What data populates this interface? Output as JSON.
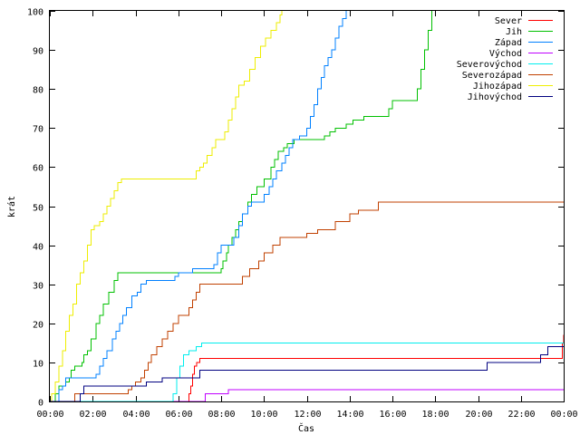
{
  "chart_data": {
    "type": "line",
    "title": "",
    "xlabel": "Čas",
    "ylabel": "krát",
    "xlim": [
      0,
      1440
    ],
    "ylim": [
      0,
      100
    ],
    "grid": false,
    "legend_position": "top-right",
    "x_units": "minutes of day",
    "x_ticks": [
      {
        "value": 0,
        "label": "00:00"
      },
      {
        "value": 120,
        "label": "02:00"
      },
      {
        "value": 240,
        "label": "04:00"
      },
      {
        "value": 360,
        "label": "06:00"
      },
      {
        "value": 480,
        "label": "08:00"
      },
      {
        "value": 600,
        "label": "10:00"
      },
      {
        "value": 720,
        "label": "12:00"
      },
      {
        "value": 840,
        "label": "14:00"
      },
      {
        "value": 960,
        "label": "16:00"
      },
      {
        "value": 1080,
        "label": "18:00"
      },
      {
        "value": 1200,
        "label": "20:00"
      },
      {
        "value": 1320,
        "label": "22:00"
      },
      {
        "value": 1440,
        "label": "00:00"
      }
    ],
    "y_ticks": [
      {
        "value": 0,
        "label": "0"
      },
      {
        "value": 10,
        "label": "10"
      },
      {
        "value": 20,
        "label": "20"
      },
      {
        "value": 30,
        "label": "30"
      },
      {
        "value": 40,
        "label": "40"
      },
      {
        "value": 50,
        "label": "50"
      },
      {
        "value": 60,
        "label": "60"
      },
      {
        "value": 70,
        "label": "70"
      },
      {
        "value": 80,
        "label": "80"
      },
      {
        "value": 90,
        "label": "90"
      },
      {
        "value": 100,
        "label": "100"
      }
    ],
    "series": [
      {
        "name": "Sever",
        "color": "#ff0000",
        "points": [
          [
            0,
            0
          ],
          [
            385,
            0
          ],
          [
            390,
            2
          ],
          [
            395,
            4
          ],
          [
            400,
            7
          ],
          [
            405,
            9
          ],
          [
            412,
            10
          ],
          [
            420,
            11
          ],
          [
            1432,
            11
          ],
          [
            1436,
            15
          ],
          [
            1440,
            17
          ]
        ]
      },
      {
        "name": "Jih",
        "color": "#00c000",
        "points": [
          [
            0,
            0
          ],
          [
            10,
            0
          ],
          [
            15,
            2
          ],
          [
            25,
            4
          ],
          [
            45,
            5
          ],
          [
            55,
            6
          ],
          [
            60,
            8
          ],
          [
            70,
            9
          ],
          [
            90,
            10
          ],
          [
            95,
            12
          ],
          [
            105,
            13
          ],
          [
            115,
            16
          ],
          [
            130,
            20
          ],
          [
            140,
            22
          ],
          [
            150,
            25
          ],
          [
            165,
            28
          ],
          [
            180,
            31
          ],
          [
            190,
            33
          ],
          [
            470,
            33
          ],
          [
            480,
            34
          ],
          [
            485,
            36
          ],
          [
            495,
            38
          ],
          [
            500,
            40
          ],
          [
            510,
            42
          ],
          [
            520,
            44
          ],
          [
            530,
            46
          ],
          [
            540,
            48
          ],
          [
            555,
            51
          ],
          [
            565,
            53
          ],
          [
            580,
            55
          ],
          [
            600,
            57
          ],
          [
            620,
            60
          ],
          [
            630,
            62
          ],
          [
            640,
            64
          ],
          [
            655,
            65
          ],
          [
            665,
            66
          ],
          [
            685,
            67
          ],
          [
            760,
            67
          ],
          [
            770,
            68
          ],
          [
            785,
            69
          ],
          [
            800,
            70
          ],
          [
            830,
            71
          ],
          [
            850,
            72
          ],
          [
            880,
            73
          ],
          [
            940,
            73
          ],
          [
            950,
            75
          ],
          [
            960,
            77
          ],
          [
            1020,
            77
          ],
          [
            1030,
            80
          ],
          [
            1040,
            85
          ],
          [
            1050,
            90
          ],
          [
            1060,
            95
          ],
          [
            1070,
            100
          ]
        ]
      },
      {
        "name": "Západ",
        "color": "#0080ff",
        "points": [
          [
            0,
            0
          ],
          [
            15,
            0
          ],
          [
            25,
            3
          ],
          [
            35,
            4
          ],
          [
            45,
            6
          ],
          [
            120,
            6
          ],
          [
            130,
            7
          ],
          [
            140,
            9
          ],
          [
            150,
            11
          ],
          [
            160,
            13
          ],
          [
            175,
            16
          ],
          [
            185,
            18
          ],
          [
            195,
            20
          ],
          [
            205,
            22
          ],
          [
            215,
            24
          ],
          [
            230,
            27
          ],
          [
            245,
            28
          ],
          [
            255,
            30
          ],
          [
            270,
            31
          ],
          [
            340,
            31
          ],
          [
            350,
            32
          ],
          [
            360,
            33
          ],
          [
            380,
            33
          ],
          [
            400,
            34
          ],
          [
            450,
            34
          ],
          [
            460,
            35
          ],
          [
            470,
            38
          ],
          [
            480,
            40
          ],
          [
            500,
            40
          ],
          [
            515,
            42
          ],
          [
            530,
            45
          ],
          [
            540,
            48
          ],
          [
            555,
            50
          ],
          [
            565,
            51
          ],
          [
            590,
            51
          ],
          [
            600,
            53
          ],
          [
            615,
            55
          ],
          [
            625,
            57
          ],
          [
            635,
            59
          ],
          [
            650,
            61
          ],
          [
            660,
            63
          ],
          [
            670,
            65
          ],
          [
            680,
            67
          ],
          [
            700,
            68
          ],
          [
            720,
            70
          ],
          [
            730,
            73
          ],
          [
            740,
            76
          ],
          [
            750,
            80
          ],
          [
            760,
            83
          ],
          [
            770,
            86
          ],
          [
            780,
            88
          ],
          [
            790,
            90
          ],
          [
            800,
            93
          ],
          [
            810,
            96
          ],
          [
            820,
            98
          ],
          [
            830,
            100
          ]
        ]
      },
      {
        "name": "Východ",
        "color": "#c000ff",
        "points": [
          [
            0,
            0
          ],
          [
            430,
            0
          ],
          [
            435,
            2
          ],
          [
            495,
            2
          ],
          [
            500,
            3
          ],
          [
            1440,
            3
          ]
        ]
      },
      {
        "name": "Severovýchod",
        "color": "#00eeee",
        "points": [
          [
            0,
            0
          ],
          [
            340,
            0
          ],
          [
            345,
            2
          ],
          [
            355,
            6
          ],
          [
            365,
            9
          ],
          [
            375,
            12
          ],
          [
            390,
            13
          ],
          [
            410,
            14
          ],
          [
            425,
            15
          ],
          [
            1440,
            15
          ]
        ]
      },
      {
        "name": "Severozápad",
        "color": "#c04000",
        "points": [
          [
            0,
            0
          ],
          [
            65,
            0
          ],
          [
            70,
            2
          ],
          [
            215,
            2
          ],
          [
            220,
            3
          ],
          [
            230,
            4
          ],
          [
            240,
            5
          ],
          [
            255,
            6
          ],
          [
            265,
            8
          ],
          [
            275,
            10
          ],
          [
            285,
            12
          ],
          [
            300,
            14
          ],
          [
            315,
            16
          ],
          [
            330,
            18
          ],
          [
            345,
            20
          ],
          [
            360,
            22
          ],
          [
            380,
            22
          ],
          [
            390,
            24
          ],
          [
            400,
            26
          ],
          [
            410,
            28
          ],
          [
            420,
            30
          ],
          [
            520,
            30
          ],
          [
            540,
            32
          ],
          [
            560,
            34
          ],
          [
            585,
            36
          ],
          [
            600,
            38
          ],
          [
            625,
            40
          ],
          [
            645,
            42
          ],
          [
            700,
            42
          ],
          [
            720,
            43
          ],
          [
            750,
            44
          ],
          [
            800,
            46
          ],
          [
            840,
            48
          ],
          [
            865,
            49
          ],
          [
            910,
            49
          ],
          [
            920,
            51
          ],
          [
            1440,
            51
          ]
        ]
      },
      {
        "name": "Jihozápad",
        "color": "#eeee00",
        "points": [
          [
            0,
            0
          ],
          [
            5,
            2
          ],
          [
            15,
            5
          ],
          [
            25,
            9
          ],
          [
            35,
            13
          ],
          [
            45,
            18
          ],
          [
            55,
            22
          ],
          [
            65,
            25
          ],
          [
            75,
            30
          ],
          [
            85,
            33
          ],
          [
            95,
            36
          ],
          [
            105,
            40
          ],
          [
            115,
            44
          ],
          [
            125,
            45
          ],
          [
            140,
            46
          ],
          [
            150,
            48
          ],
          [
            160,
            50
          ],
          [
            170,
            52
          ],
          [
            180,
            54
          ],
          [
            190,
            56
          ],
          [
            200,
            57
          ],
          [
            400,
            57
          ],
          [
            410,
            59
          ],
          [
            420,
            60
          ],
          [
            430,
            61
          ],
          [
            440,
            63
          ],
          [
            455,
            65
          ],
          [
            465,
            67
          ],
          [
            480,
            67
          ],
          [
            490,
            69
          ],
          [
            500,
            72
          ],
          [
            510,
            75
          ],
          [
            520,
            78
          ],
          [
            530,
            81
          ],
          [
            545,
            82
          ],
          [
            560,
            85
          ],
          [
            575,
            88
          ],
          [
            590,
            91
          ],
          [
            605,
            93
          ],
          [
            620,
            95
          ],
          [
            635,
            97
          ],
          [
            645,
            99
          ],
          [
            650,
            100
          ]
        ]
      },
      {
        "name": "Jihovýchod",
        "color": "#000080",
        "points": [
          [
            0,
            0
          ],
          [
            80,
            0
          ],
          [
            85,
            2
          ],
          [
            95,
            4
          ],
          [
            255,
            4
          ],
          [
            270,
            5
          ],
          [
            300,
            5
          ],
          [
            315,
            6
          ],
          [
            400,
            6
          ],
          [
            420,
            8
          ],
          [
            1205,
            8
          ],
          [
            1225,
            10
          ],
          [
            1365,
            10
          ],
          [
            1375,
            12
          ],
          [
            1395,
            14
          ],
          [
            1440,
            14
          ]
        ]
      }
    ]
  }
}
